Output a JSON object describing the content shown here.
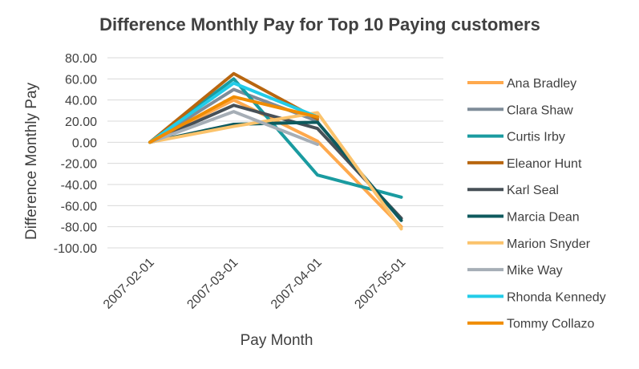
{
  "chart_data": {
    "type": "line",
    "title": "Difference Monthly Pay for Top 10 Paying customers",
    "xlabel": "Pay Month",
    "ylabel": "Difference Monthly Pay",
    "categories": [
      "2007-02-01",
      "2007-03-01",
      "2007-04-01",
      "2007-05-01"
    ],
    "ylim": [
      -100,
      80
    ],
    "yticks": [
      "80.00",
      "60.00",
      "40.00",
      "20.00",
      "0.00",
      "-20.00",
      "-40.00",
      "-60.00",
      "-80.00",
      "-100.00"
    ],
    "grid": true,
    "legend_position": "right",
    "series": [
      {
        "name": "Ana Bradley",
        "color": "#FFA94D",
        "values": [
          0,
          40,
          1,
          -80
        ]
      },
      {
        "name": "Clara Shaw",
        "color": "#7F8C99",
        "values": [
          0,
          50,
          20,
          null
        ]
      },
      {
        "name": "Curtis Irby",
        "color": "#1A9BA0",
        "values": [
          0,
          60,
          -31,
          -52
        ]
      },
      {
        "name": "Eleanor Hunt",
        "color": "#B8660F",
        "values": [
          0,
          65,
          22,
          null
        ]
      },
      {
        "name": "Karl Seal",
        "color": "#475057",
        "values": [
          0,
          35,
          13,
          -72
        ]
      },
      {
        "name": "Marcia Dean",
        "color": "#0E5A5E",
        "values": [
          0,
          17,
          19,
          -74
        ]
      },
      {
        "name": "Marion Snyder",
        "color": "#FBC36C",
        "values": [
          0,
          15,
          28,
          -82
        ]
      },
      {
        "name": "Mike Way",
        "color": "#A6AEB6",
        "values": [
          0,
          29,
          -2,
          null
        ]
      },
      {
        "name": "Rhonda Kennedy",
        "color": "#22CCE8",
        "values": [
          0,
          56,
          24,
          null
        ]
      },
      {
        "name": "Tommy Collazo",
        "color": "#F08C00",
        "values": [
          0,
          43,
          24,
          null
        ]
      }
    ]
  }
}
